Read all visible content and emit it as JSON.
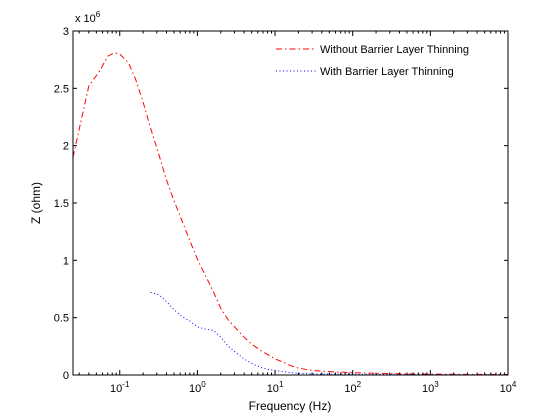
{
  "chart_data": {
    "type": "line",
    "xlabel": "Frequency (Hz)",
    "ylabel": "Z (ohm)",
    "y_exponent_label": "x 10",
    "y_exponent_power": "6",
    "xscale": "log",
    "xlim": [
      0.025,
      10000
    ],
    "ylim": [
      0,
      3000000
    ],
    "y_tick_values": [
      0,
      500000,
      1000000,
      1500000,
      2000000,
      2500000,
      3000000
    ],
    "y_tick_labels": [
      "0",
      "0.5",
      "1",
      "1.5",
      "2",
      "2.5",
      "3"
    ],
    "x_tick_values": [
      0.1,
      1,
      10,
      100,
      1000,
      10000
    ],
    "x_tick_base": "10",
    "x_tick_exponents": [
      "-1",
      "0",
      "1",
      "2",
      "3",
      "4"
    ],
    "grid": false,
    "legend_position": "top-right",
    "series": [
      {
        "name": "Without Barrier Layer Thinning",
        "color": "#ff0000",
        "dash": "dash-dot",
        "x": [
          0.025,
          0.04,
          0.055,
          0.07,
          0.085,
          0.1,
          0.13,
          0.16,
          0.2,
          0.25,
          0.32,
          0.4,
          0.5,
          0.63,
          0.8,
          1,
          1.26,
          1.6,
          2,
          2.5,
          3.2,
          4,
          5,
          6.3,
          8,
          10,
          13,
          16,
          20,
          30,
          50,
          100,
          200,
          500,
          1000,
          2000,
          5000,
          10000
        ],
        "y": [
          1900000,
          2520000,
          2650000,
          2780000,
          2810000,
          2800000,
          2720000,
          2580000,
          2380000,
          2150000,
          1920000,
          1700000,
          1520000,
          1350000,
          1170000,
          1010000,
          870000,
          730000,
          580000,
          480000,
          400000,
          330000,
          270000,
          220000,
          180000,
          140000,
          110000,
          80000,
          60000,
          40000,
          30000,
          20000,
          15000,
          10000,
          8000,
          6000,
          5000,
          4000
        ]
      },
      {
        "name": "With Barrier Layer Thinning",
        "color": "#0000ff",
        "dash": "dotted",
        "x": [
          0.25,
          0.32,
          0.4,
          0.5,
          0.63,
          0.8,
          1,
          1.26,
          1.6,
          2,
          2.5,
          3.2,
          4,
          5,
          6.3,
          8,
          10,
          13,
          16,
          20,
          30,
          50,
          100,
          200,
          500,
          1000,
          2000,
          5000,
          10000
        ],
        "y": [
          720000,
          700000,
          640000,
          570000,
          510000,
          470000,
          420000,
          400000,
          390000,
          330000,
          250000,
          190000,
          140000,
          100000,
          70000,
          50000,
          40000,
          30000,
          20000,
          15000,
          10000,
          8000,
          6000,
          5000,
          4000,
          3500,
          3000,
          2500,
          2000
        ]
      }
    ]
  }
}
